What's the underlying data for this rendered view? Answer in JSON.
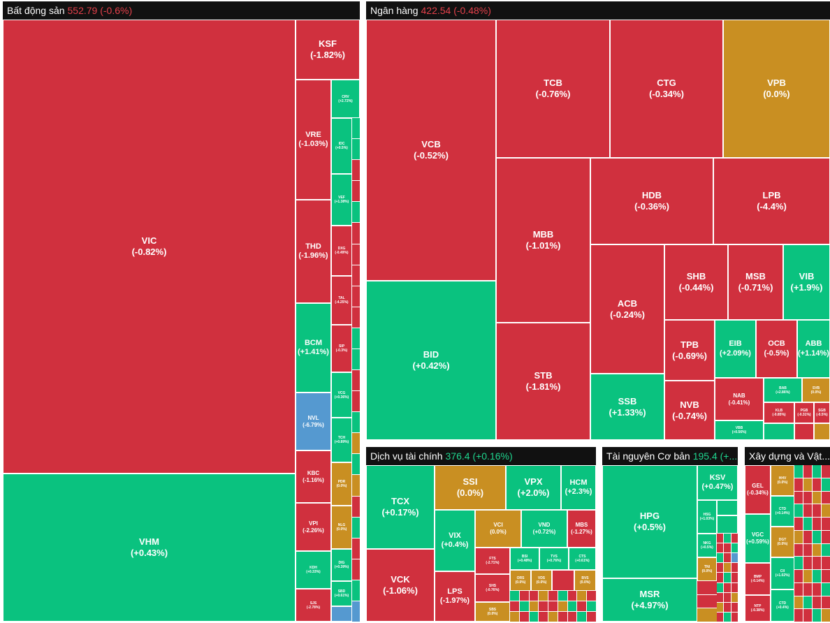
{
  "colors": {
    "negative": "#d0303e",
    "positive": "#0ac27f",
    "unchanged": "#c98f22",
    "floor": "#5599d0",
    "header_bg": "#111111"
  },
  "sectors": {
    "real_estate": {
      "name": "Bất động sản",
      "index": "552.79",
      "change": "(-0.6%)"
    },
    "banking": {
      "name": "Ngân hàng",
      "index": "422.54",
      "change": "(-0.48%)"
    },
    "financial_services": {
      "name": "Dịch vụ tài chính",
      "index": "376.4",
      "change": "(+0.16%)"
    },
    "basic_resources": {
      "name": "Tài nguyên Cơ bản",
      "index": "195.4",
      "change": "(+..."
    },
    "construction": {
      "name": "Xây dựng và Vật..."
    }
  },
  "tiles": {
    "vic": {
      "t": "VIC",
      "c": "(-0.82%)"
    },
    "vhm": {
      "t": "VHM",
      "c": "(+0.43%)"
    },
    "ksf": {
      "t": "KSF",
      "c": "(-1.82%)"
    },
    "vre": {
      "t": "VRE",
      "c": "(-1.03%)"
    },
    "thd": {
      "t": "THD",
      "c": "(-1.96%)"
    },
    "bcm": {
      "t": "BCM",
      "c": "(+1.41%)"
    },
    "nvl": {
      "t": "NVL",
      "c": "(-6.79%)"
    },
    "kbc": {
      "t": "KBC",
      "c": "(-1.16%)"
    },
    "vpi": {
      "t": "VPI",
      "c": "(-2.26%)"
    },
    "kdh": {
      "t": "KDH",
      "c": "(+0.33%)"
    },
    "sjs": {
      "t": "SJS",
      "c": "(-2.78%)"
    },
    "crv": {
      "t": "CRV",
      "c": "(+2.72%)"
    },
    "idc": {
      "t": "IDC",
      "c": "(+0.5%)"
    },
    "vef": {
      "t": "VEF",
      "c": "(+1.38%)"
    },
    "dxg": {
      "t": "DXG",
      "c": "(-0.49%)"
    },
    "tal": {
      "t": "TAL",
      "c": "(-4.25%)"
    },
    "sip": {
      "t": "SIP",
      "c": "(-0.3%)"
    },
    "vcg": {
      "t": "VCG",
      "c": "(+0.36%)"
    },
    "tch": {
      "t": "TCH",
      "c": "(+0.89%)"
    },
    "pdr": {
      "t": "PDR",
      "c": "(0.0%)"
    },
    "nlg": {
      "t": "NLG",
      "c": "(0.0%)"
    },
    "dig": {
      "t": "DIG",
      "c": "(+0.39%)"
    },
    "sbd": {
      "t": "SBD",
      "c": "(+0.61%)"
    },
    "vcb": {
      "t": "VCB",
      "c": "(-0.52%)"
    },
    "bid": {
      "t": "BID",
      "c": "(+0.42%)"
    },
    "tcb": {
      "t": "TCB",
      "c": "(-0.76%)"
    },
    "ctg": {
      "t": "CTG",
      "c": "(-0.34%)"
    },
    "vpb": {
      "t": "VPB",
      "c": "(0.0%)"
    },
    "mbb": {
      "t": "MBB",
      "c": "(-1.01%)"
    },
    "stb": {
      "t": "STB",
      "c": "(-1.81%)"
    },
    "hdb": {
      "t": "HDB",
      "c": "(-0.36%)"
    },
    "lpb": {
      "t": "LPB",
      "c": "(-4.4%)"
    },
    "acb": {
      "t": "ACB",
      "c": "(-0.24%)"
    },
    "ssb": {
      "t": "SSB",
      "c": "(+1.33%)"
    },
    "shb": {
      "t": "SHB",
      "c": "(-0.44%)"
    },
    "msb": {
      "t": "MSB",
      "c": "(-0.71%)"
    },
    "vib": {
      "t": "VIB",
      "c": "(+1.9%)"
    },
    "tpb": {
      "t": "TPB",
      "c": "(-0.69%)"
    },
    "nvb": {
      "t": "NVB",
      "c": "(-0.74%)"
    },
    "eib": {
      "t": "EIB",
      "c": "(+2.09%)"
    },
    "ocb": {
      "t": "OCB",
      "c": "(-0.5%)"
    },
    "abb": {
      "t": "ABB",
      "c": "(+1.14%)"
    },
    "nab": {
      "t": "NAB",
      "c": "(-0.41%)"
    },
    "bab": {
      "t": "BAB",
      "c": "(+2.86%)"
    },
    "svb": {
      "t": "SVB",
      "c": "(0.0%)"
    },
    "vbb": {
      "t": "VBB",
      "c": "(+0.56%)"
    },
    "klb": {
      "t": "KLB",
      "c": "(-0.85%)"
    },
    "pgb": {
      "t": "PGB",
      "c": "(-0.31%)"
    },
    "sgb": {
      "t": "SGB",
      "c": "(-0.5%)"
    },
    "tcx": {
      "t": "TCX",
      "c": "(+0.17%)"
    },
    "vck": {
      "t": "VCK",
      "c": "(-1.06%)"
    },
    "ssi": {
      "t": "SSI",
      "c": "(0.0%)"
    },
    "vpx": {
      "t": "VPX",
      "c": "(+2.0%)"
    },
    "hcm": {
      "t": "HCM",
      "c": "(+2.3%)"
    },
    "vix": {
      "t": "VIX",
      "c": "(+0.4%)"
    },
    "vci": {
      "t": "VCI",
      "c": "(0.0%)"
    },
    "vnd": {
      "t": "VND",
      "c": "(+0.72%)"
    },
    "mbs": {
      "t": "MBS",
      "c": "(-1.27%)"
    },
    "lps": {
      "t": "LPS",
      "c": "(-1.97%)"
    },
    "fts": {
      "t": "FTS",
      "c": "(-2.71%)"
    },
    "shs": {
      "t": "SHS",
      "c": "(-0.76%)"
    },
    "sbs": {
      "t": "SBS",
      "c": "(0.0%)"
    },
    "bsi": {
      "t": "BSI",
      "c": "(+0.48%)"
    },
    "tvs": {
      "t": "TVS",
      "c": "(+0.76%)"
    },
    "ctsi": {
      "t": "CTS",
      "c": "(+0.61%)"
    },
    "orsf": {
      "t": "ORS",
      "c": "(0.0%)"
    },
    "vds": {
      "t": "VDS",
      "c": "(0.0%)"
    },
    "bvs": {
      "t": "BVS",
      "c": "(0.0%)"
    },
    "hpg": {
      "t": "HPG",
      "c": "(+0.5%)"
    },
    "msr": {
      "t": "MSR",
      "c": "(+4.97%)"
    },
    "ksv": {
      "t": "KSV",
      "c": "(+0.47%)"
    },
    "hsg": {
      "t": "HSG",
      "c": "(+1.03%)"
    },
    "nkg": {
      "t": "NKG",
      "c": "(+0.5%)"
    },
    "tmp": {
      "t": "TNI",
      "c": "(0.0%)"
    },
    "gel": {
      "t": "GEL",
      "c": "(-0.34%)"
    },
    "vgc": {
      "t": "VGC",
      "c": "(+0.59%)"
    },
    "bmp": {
      "t": "BMP",
      "c": "(-0.14%)"
    },
    "ntp": {
      "t": "NTP",
      "c": "(-0.38%)"
    },
    "hhv": {
      "t": "HHV",
      "c": "(0.0%)"
    },
    "ctd": {
      "t": "CTD",
      "c": "(+0.14%)"
    },
    "dgt": {
      "t": "DGT",
      "c": "(0.0%)"
    },
    "cii": {
      "t": "CII",
      "c": "(+1.02%)"
    },
    "cctd": {
      "t": "CTD",
      "c": "(+0.4%)"
    }
  }
}
